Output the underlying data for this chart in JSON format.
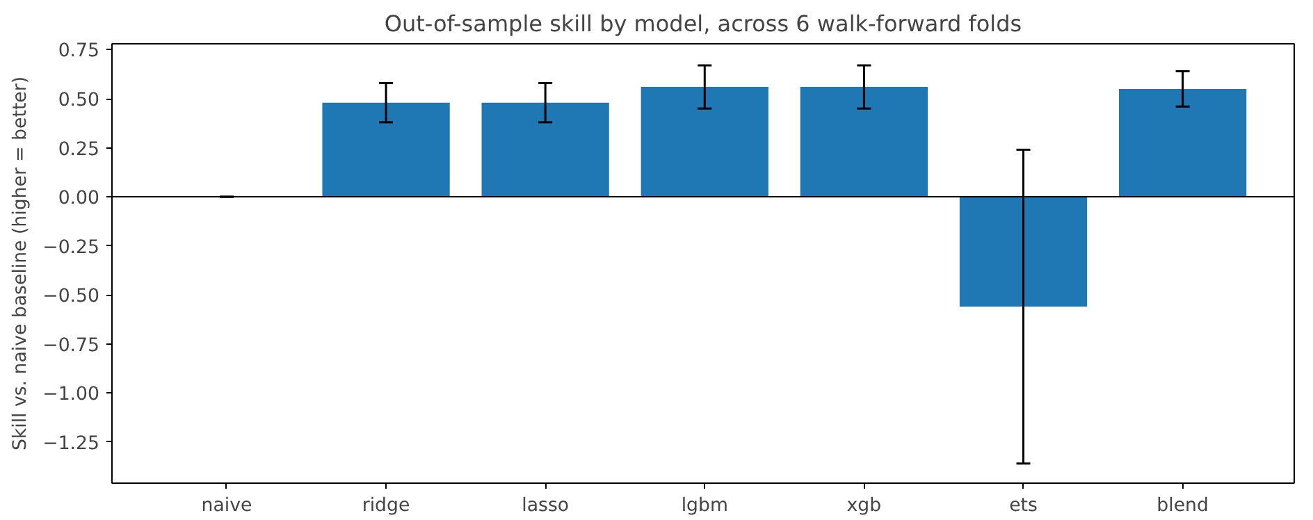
{
  "chart_data": {
    "type": "bar",
    "title": "Out-of-sample skill by model, across 6 walk-forward folds",
    "ylabel": "Skill vs. naive baseline (higher = better)",
    "categories": [
      "naive",
      "ridge",
      "lasso",
      "lgbm",
      "xgb",
      "ets",
      "blend"
    ],
    "values": [
      0,
      0.48,
      0.48,
      0.56,
      0.56,
      -0.56,
      0.55
    ],
    "errors": [
      0,
      0.1,
      0.1,
      0.11,
      0.11,
      0.8,
      0.09
    ],
    "color": "#1f77b4",
    "ylim": [
      -1.46,
      0.78
    ],
    "yticks": [
      {
        "value": 0.75,
        "label": "0.75"
      },
      {
        "value": 0.5,
        "label": "0.50"
      },
      {
        "value": 0.25,
        "label": "0.25"
      },
      {
        "value": 0,
        "label": "0.00"
      },
      {
        "value": -0.25,
        "label": "−0.25"
      },
      {
        "value": -0.5,
        "label": "−0.50"
      },
      {
        "value": -0.75,
        "label": "−0.75"
      },
      {
        "value": -1.0,
        "label": "−1.00"
      },
      {
        "value": -1.25,
        "label": "−1.25"
      }
    ],
    "ref_lines": [
      {
        "axis": "y",
        "value": 0,
        "color": "#000000"
      }
    ],
    "grid": false
  }
}
